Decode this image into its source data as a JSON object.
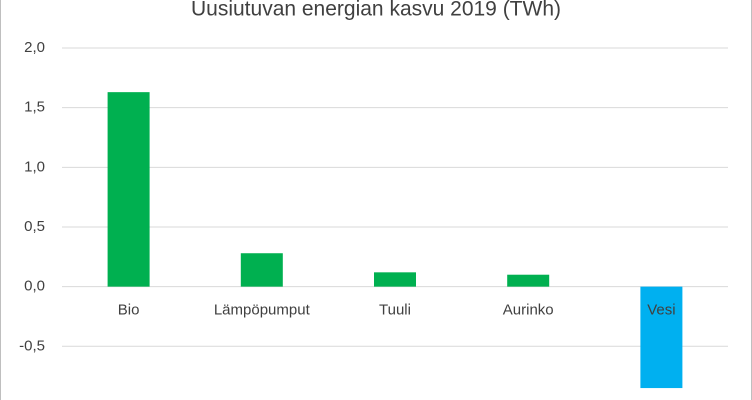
{
  "chart_data": {
    "type": "bar",
    "title": "Uusiutuvan energian kasvu 2019 (TWh)",
    "categories": [
      "Bio",
      "Lämpöpumput",
      "Tuuli",
      "Aurinko",
      "Vesi"
    ],
    "values": [
      1.63,
      0.28,
      0.12,
      0.1,
      -0.85
    ],
    "colors": [
      "#00b050",
      "#00b050",
      "#00b050",
      "#00b050",
      "#00b0f0"
    ],
    "ylim": [
      -0.95,
      2.0
    ],
    "yticks": [
      {
        "value": 2.0,
        "label": "2,0"
      },
      {
        "value": 1.5,
        "label": "1,5"
      },
      {
        "value": 1.0,
        "label": "1,0"
      },
      {
        "value": 0.5,
        "label": "0,5"
      },
      {
        "value": 0.0,
        "label": "0,0"
      },
      {
        "value": -0.5,
        "label": "-0,5"
      }
    ],
    "grid": true
  }
}
